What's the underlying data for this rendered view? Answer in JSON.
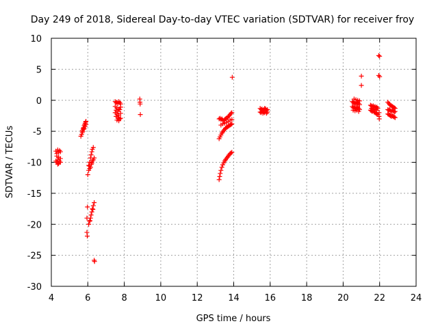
{
  "chart_data": {
    "type": "scatter",
    "title": "Day 249 of 2018, Sidereal Day-to-day VTEC variation (SDTVAR) for receiver froy",
    "xlabel": "GPS time / hours",
    "ylabel": "SDTVAR / TECUs",
    "xlim": [
      4,
      24
    ],
    "ylim": [
      -30,
      10
    ],
    "xticks": [
      4,
      6,
      8,
      10,
      12,
      14,
      16,
      18,
      20,
      22,
      24
    ],
    "yticks": [
      -30,
      -25,
      -20,
      -15,
      -10,
      -5,
      0,
      5,
      10
    ],
    "grid": true,
    "marker": "+",
    "color": "#ff0000",
    "series": [
      {
        "name": "SDTVAR",
        "points": [
          [
            4.25,
            -8.2
          ],
          [
            4.3,
            -8.6
          ],
          [
            4.35,
            -8.0
          ],
          [
            4.4,
            -8.4
          ],
          [
            4.45,
            -8.1
          ],
          [
            4.5,
            -8.3
          ],
          [
            4.3,
            -9.0
          ],
          [
            4.4,
            -9.2
          ],
          [
            4.35,
            -9.6
          ],
          [
            4.45,
            -9.8
          ],
          [
            4.3,
            -10.0
          ],
          [
            4.4,
            -10.2
          ],
          [
            4.5,
            -10.0
          ],
          [
            4.25,
            -9.8
          ],
          [
            4.5,
            -9.4
          ],
          [
            4.35,
            -10.3
          ],
          [
            5.62,
            -5.8
          ],
          [
            5.66,
            -5.5
          ],
          [
            5.7,
            -5.2
          ],
          [
            5.72,
            -5.0
          ],
          [
            5.75,
            -4.7
          ],
          [
            5.78,
            -4.4
          ],
          [
            5.8,
            -4.1
          ],
          [
            5.83,
            -3.9
          ],
          [
            5.86,
            -3.7
          ],
          [
            5.88,
            -3.5
          ],
          [
            5.9,
            -3.4
          ],
          [
            5.7,
            -4.9
          ],
          [
            5.75,
            -4.5
          ],
          [
            5.85,
            -4.2
          ],
          [
            5.9,
            -3.9
          ],
          [
            5.8,
            -4.6
          ],
          [
            6.0,
            -12.0
          ],
          [
            6.05,
            -11.3
          ],
          [
            6.08,
            -10.6
          ],
          [
            6.1,
            -10.0
          ],
          [
            6.15,
            -9.3
          ],
          [
            6.18,
            -8.8
          ],
          [
            6.22,
            -8.3
          ],
          [
            6.25,
            -7.9
          ],
          [
            6.3,
            -7.6
          ],
          [
            6.05,
            -10.5
          ],
          [
            6.1,
            -11.0
          ],
          [
            6.2,
            -10.3
          ],
          [
            6.25,
            -9.8
          ],
          [
            6.3,
            -9.6
          ],
          [
            6.35,
            -9.3
          ],
          [
            6.15,
            -10.8
          ],
          [
            6.22,
            -10.1
          ],
          [
            5.95,
            -21.3
          ],
          [
            5.97,
            -21.9
          ],
          [
            5.95,
            -19.0
          ],
          [
            5.98,
            -17.2
          ],
          [
            6.05,
            -20.0
          ],
          [
            6.1,
            -19.5
          ],
          [
            6.15,
            -19.0
          ],
          [
            6.18,
            -18.5
          ],
          [
            6.22,
            -18.0
          ],
          [
            6.25,
            -17.5
          ],
          [
            6.3,
            -17.0
          ],
          [
            6.35,
            -16.5
          ],
          [
            6.12,
            -19.4
          ],
          [
            6.28,
            -17.6
          ],
          [
            6.35,
            -25.8
          ],
          [
            6.37,
            -26.0
          ],
          [
            7.5,
            -0.2
          ],
          [
            7.55,
            -0.4
          ],
          [
            7.6,
            -0.3
          ],
          [
            7.65,
            -0.5
          ],
          [
            7.7,
            -0.2
          ],
          [
            7.75,
            -0.4
          ],
          [
            7.8,
            -0.6
          ],
          [
            7.5,
            -1.0
          ],
          [
            7.6,
            -1.2
          ],
          [
            7.7,
            -1.4
          ],
          [
            7.8,
            -1.1
          ],
          [
            7.55,
            -1.6
          ],
          [
            7.65,
            -1.8
          ],
          [
            7.75,
            -1.5
          ],
          [
            7.5,
            -2.0
          ],
          [
            7.6,
            -2.2
          ],
          [
            7.7,
            -2.4
          ],
          [
            7.8,
            -2.1
          ],
          [
            7.55,
            -2.6
          ],
          [
            7.65,
            -2.8
          ],
          [
            7.75,
            -3.0
          ],
          [
            7.6,
            -3.2
          ],
          [
            7.7,
            -3.3
          ],
          [
            7.8,
            -2.9
          ],
          [
            8.85,
            0.2
          ],
          [
            8.86,
            -0.3
          ],
          [
            8.87,
            -0.6
          ],
          [
            8.88,
            -2.3
          ],
          [
            13.2,
            -12.8
          ],
          [
            13.23,
            -12.3
          ],
          [
            13.26,
            -11.8
          ],
          [
            13.3,
            -11.3
          ],
          [
            13.35,
            -10.8
          ],
          [
            13.4,
            -10.4
          ],
          [
            13.45,
            -10.1
          ],
          [
            13.5,
            -9.8
          ],
          [
            13.55,
            -9.6
          ],
          [
            13.6,
            -9.4
          ],
          [
            13.65,
            -9.2
          ],
          [
            13.7,
            -9.0
          ],
          [
            13.75,
            -8.8
          ],
          [
            13.8,
            -8.6
          ],
          [
            13.85,
            -8.5
          ],
          [
            13.9,
            -8.4
          ],
          [
            13.2,
            -6.2
          ],
          [
            13.25,
            -5.9
          ],
          [
            13.3,
            -5.6
          ],
          [
            13.35,
            -5.3
          ],
          [
            13.4,
            -5.1
          ],
          [
            13.45,
            -4.9
          ],
          [
            13.5,
            -4.7
          ],
          [
            13.55,
            -4.5
          ],
          [
            13.6,
            -4.4
          ],
          [
            13.65,
            -4.3
          ],
          [
            13.7,
            -4.2
          ],
          [
            13.75,
            -4.1
          ],
          [
            13.8,
            -4.0
          ],
          [
            13.85,
            -3.9
          ],
          [
            13.9,
            -3.8
          ],
          [
            13.2,
            -3.0
          ],
          [
            13.25,
            -2.9
          ],
          [
            13.3,
            -3.1
          ],
          [
            13.35,
            -3.0
          ],
          [
            13.4,
            -3.2
          ],
          [
            13.45,
            -3.3
          ],
          [
            13.5,
            -3.1
          ],
          [
            13.55,
            -3.0
          ],
          [
            13.6,
            -2.9
          ],
          [
            13.65,
            -2.8
          ],
          [
            13.7,
            -2.6
          ],
          [
            13.75,
            -2.5
          ],
          [
            13.8,
            -2.3
          ],
          [
            13.85,
            -2.1
          ],
          [
            13.9,
            -2.0
          ],
          [
            13.3,
            -4.0
          ],
          [
            13.4,
            -3.8
          ],
          [
            13.5,
            -3.7
          ],
          [
            13.6,
            -3.6
          ],
          [
            13.7,
            -3.4
          ],
          [
            13.8,
            -3.2
          ],
          [
            13.9,
            -3.1
          ],
          [
            13.92,
            3.7
          ],
          [
            15.45,
            -1.3
          ],
          [
            15.5,
            -1.5
          ],
          [
            15.55,
            -1.4
          ],
          [
            15.6,
            -1.6
          ],
          [
            15.65,
            -1.5
          ],
          [
            15.7,
            -1.3
          ],
          [
            15.75,
            -1.4
          ],
          [
            15.8,
            -1.6
          ],
          [
            15.85,
            -1.5
          ],
          [
            15.45,
            -1.9
          ],
          [
            15.5,
            -2.0
          ],
          [
            15.55,
            -1.8
          ],
          [
            15.6,
            -2.1
          ],
          [
            15.65,
            -1.9
          ],
          [
            15.7,
            -2.0
          ],
          [
            15.75,
            -1.8
          ],
          [
            15.8,
            -2.1
          ],
          [
            15.85,
            -1.9
          ],
          [
            20.5,
            -0.2
          ],
          [
            20.55,
            -0.4
          ],
          [
            20.6,
            -0.3
          ],
          [
            20.65,
            -0.5
          ],
          [
            20.7,
            -0.6
          ],
          [
            20.75,
            -0.4
          ],
          [
            20.8,
            -0.3
          ],
          [
            20.85,
            -0.5
          ],
          [
            20.9,
            -0.7
          ],
          [
            20.5,
            -1.0
          ],
          [
            20.55,
            -1.2
          ],
          [
            20.6,
            -1.1
          ],
          [
            20.65,
            -1.3
          ],
          [
            20.7,
            -1.4
          ],
          [
            20.75,
            -1.2
          ],
          [
            20.8,
            -1.1
          ],
          [
            20.85,
            -1.3
          ],
          [
            20.9,
            -1.5
          ],
          [
            20.55,
            -1.6
          ],
          [
            20.65,
            -1.7
          ],
          [
            20.75,
            -1.6
          ],
          [
            20.85,
            -1.8
          ],
          [
            20.6,
            0.2
          ],
          [
            20.7,
            0.1
          ],
          [
            20.8,
            0.0
          ],
          [
            20.9,
            -0.1
          ],
          [
            21.0,
            3.9
          ],
          [
            21.0,
            2.4
          ],
          [
            21.5,
            -0.8
          ],
          [
            21.55,
            -0.9
          ],
          [
            21.6,
            -1.0
          ],
          [
            21.65,
            -0.9
          ],
          [
            21.7,
            -1.1
          ],
          [
            21.75,
            -1.0
          ],
          [
            21.8,
            -1.2
          ],
          [
            21.85,
            -1.1
          ],
          [
            21.9,
            -1.3
          ],
          [
            21.5,
            -1.6
          ],
          [
            21.55,
            -1.7
          ],
          [
            21.6,
            -1.8
          ],
          [
            21.65,
            -1.7
          ],
          [
            21.7,
            -1.9
          ],
          [
            21.75,
            -2.0
          ],
          [
            21.8,
            -2.1
          ],
          [
            21.85,
            -2.2
          ],
          [
            21.9,
            -2.3
          ],
          [
            21.55,
            -1.3
          ],
          [
            21.65,
            -1.4
          ],
          [
            21.75,
            -1.5
          ],
          [
            21.85,
            -1.6
          ],
          [
            21.95,
            7.2
          ],
          [
            22.0,
            7.1
          ],
          [
            21.95,
            4.0
          ],
          [
            22.0,
            3.8
          ],
          [
            21.97,
            -2.6
          ],
          [
            21.98,
            -3.0
          ],
          [
            21.97,
            -2.0
          ],
          [
            22.45,
            -0.3
          ],
          [
            22.5,
            -0.5
          ],
          [
            22.55,
            -0.7
          ],
          [
            22.6,
            -0.8
          ],
          [
            22.65,
            -0.9
          ],
          [
            22.7,
            -1.0
          ],
          [
            22.75,
            -1.1
          ],
          [
            22.8,
            -1.2
          ],
          [
            22.85,
            -1.3
          ],
          [
            22.45,
            -1.5
          ],
          [
            22.5,
            -1.6
          ],
          [
            22.55,
            -1.5
          ],
          [
            22.6,
            -1.7
          ],
          [
            22.65,
            -1.8
          ],
          [
            22.7,
            -1.6
          ],
          [
            22.75,
            -1.7
          ],
          [
            22.8,
            -1.9
          ],
          [
            22.85,
            -1.8
          ],
          [
            22.45,
            -2.2
          ],
          [
            22.5,
            -2.3
          ],
          [
            22.55,
            -2.4
          ],
          [
            22.6,
            -2.5
          ],
          [
            22.65,
            -2.6
          ],
          [
            22.7,
            -2.5
          ],
          [
            22.75,
            -2.6
          ],
          [
            22.8,
            -2.7
          ],
          [
            22.85,
            -2.8
          ]
        ]
      }
    ]
  }
}
